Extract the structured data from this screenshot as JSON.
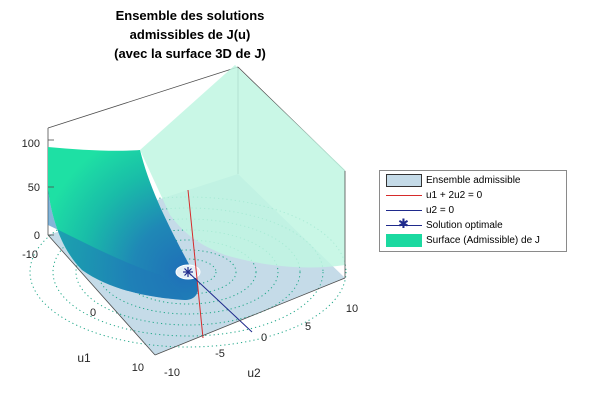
{
  "chart_data": {
    "type": "surface",
    "title": [
      "Ensemble des solutions",
      "admissibles de J(u)",
      "(avec la surface 3D de J)"
    ],
    "xlabel": "u1",
    "ylabel": "u2",
    "zlabel": "",
    "u1_ticks": [
      "-10",
      "0",
      "10"
    ],
    "u2_ticks": [
      "-10",
      "-5",
      "0",
      "5",
      "10"
    ],
    "z_ticks": [
      "0",
      "50",
      "100"
    ],
    "u1_range": [
      -10,
      10
    ],
    "u2_range": [
      -10,
      10
    ],
    "z_range": [
      0,
      110
    ],
    "constraint_line": "u1 + 2u2 = 0",
    "boundary_line": "u2 = 0",
    "optimal_solution": {
      "u1": 0,
      "u2": 0,
      "J": 0
    },
    "legend": {
      "placement": "right",
      "entries": [
        {
          "label": "Ensemble admissible",
          "kind": "patch",
          "color": "#c5dbe8"
        },
        {
          "label": "u1 + 2u2 = 0",
          "kind": "line",
          "color": "#d62b2b"
        },
        {
          "label": "u2 = 0",
          "kind": "line",
          "color": "#1f2a8c"
        },
        {
          "label": "Solution optimale",
          "kind": "marker",
          "color": "#1f2a8c"
        },
        {
          "label": "Surface (Admissible) de J",
          "kind": "patch",
          "color": "#1bd9a0"
        }
      ]
    },
    "colors": {
      "surface_admissible": "#1bd9a0",
      "surface_transparent": "#bff6e2",
      "surface_low": "#1f6fb8",
      "floor_region": "#c5dbe8",
      "constraint_line": "#d62b2b",
      "boundary_line": "#1f2a8c",
      "box": "#4d4d4d"
    }
  }
}
